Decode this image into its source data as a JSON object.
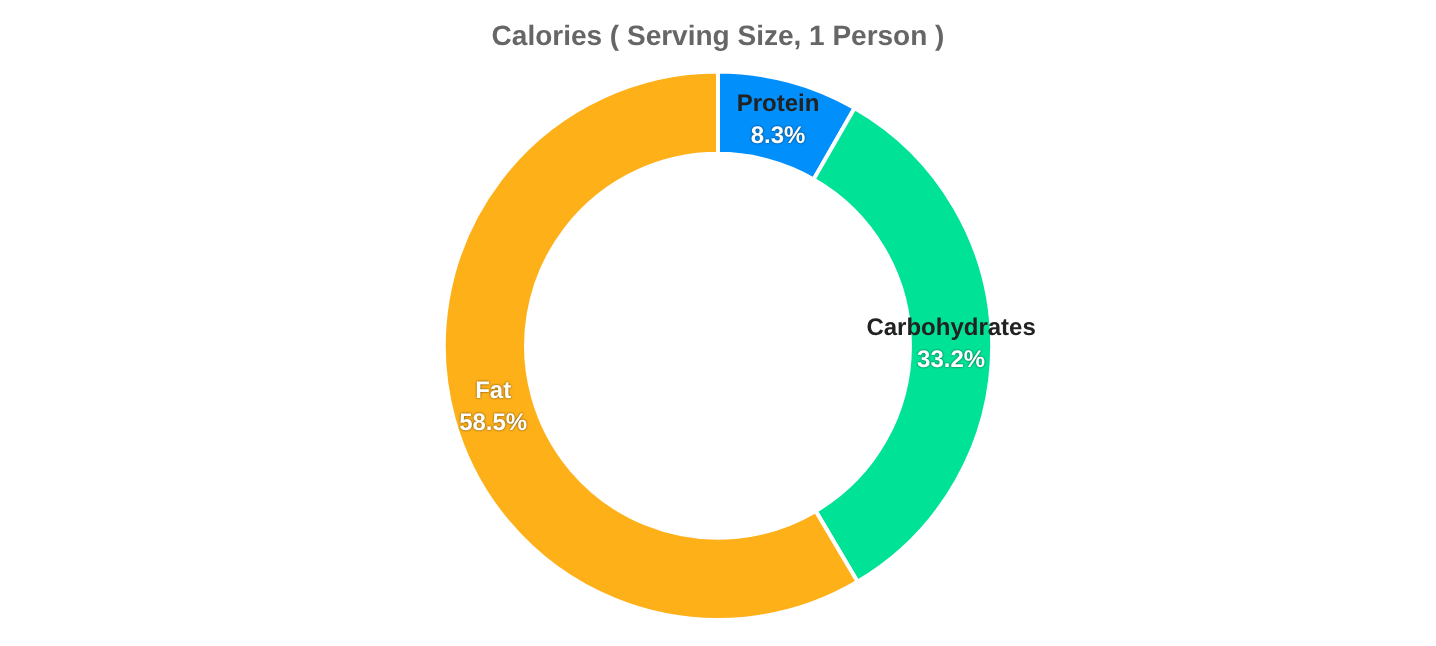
{
  "chart_data": {
    "type": "donut",
    "title": "Calories ( Serving Size, 1 Person )",
    "categories": [
      "Protein",
      "Carbohydrates",
      "Fat"
    ],
    "values": [
      8.3,
      33.2,
      58.5
    ],
    "colors": [
      "#008ffb",
      "#00e396",
      "#feb019"
    ],
    "value_labels": [
      "8.3%",
      "33.2%",
      "58.5%"
    ],
    "legend": false
  }
}
